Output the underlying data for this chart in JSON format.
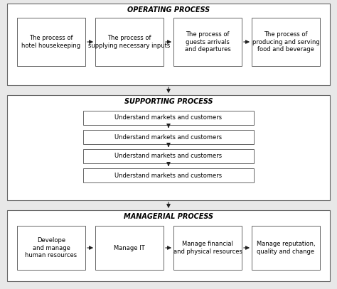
{
  "bg_color": "#e8e8e8",
  "box_color": "#ffffff",
  "box_edge": "#666666",
  "outer_edge": "#555555",
  "operating_title": "OPERATING PROCESS",
  "supporting_title": "SUPPORTING PROCESS",
  "managerial_title": "MANAGERIAL PROCESS",
  "operating_boxes": [
    "The process of\nhotel housekeeping",
    "The process of\nsupplying necessary inputs",
    "The process of\nguests arrivals\nand departures",
    "The process of\nproducing and serving\nfood and beverage"
  ],
  "supporting_boxes": [
    "Understand markets and customers",
    "Understand markets and customers",
    "Understand markets and customers",
    "Understand markets and customers"
  ],
  "managerial_boxes": [
    "Develope\nand manage\nhuman resources",
    "Manage IT",
    "Manage financial\nand physical resources",
    "Manage reputation,\nquality and change"
  ],
  "font_size_title": 7,
  "font_size_box": 6,
  "arrow_color": "#222222",
  "lw_outer": 0.8,
  "lw_inner": 0.7
}
